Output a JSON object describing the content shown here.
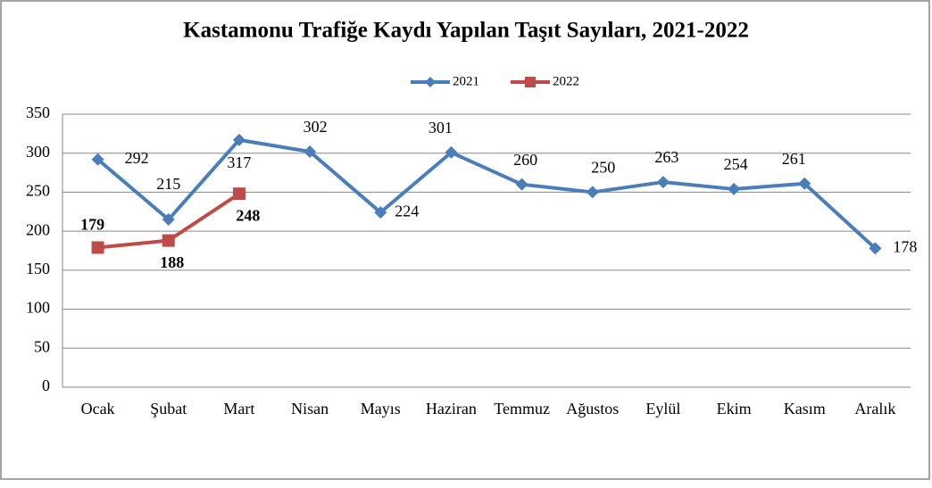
{
  "chart_data": {
    "type": "line",
    "title": "Kastamonu Trafiğe Kaydı Yapılan Taşıt Sayıları, 2021-2022",
    "categories": [
      "Ocak",
      "Şubat",
      "Mart",
      "Nisan",
      "Mayıs",
      "Haziran",
      "Temmuz",
      "Ağustos",
      "Eylül",
      "Ekim",
      "Kasım",
      "Aralık"
    ],
    "series": [
      {
        "name": "2021",
        "color": "#4a7ebb",
        "values": [
          292,
          215,
          317,
          302,
          224,
          301,
          260,
          250,
          263,
          254,
          261,
          178
        ]
      },
      {
        "name": "2022",
        "color": "#be4b48",
        "values": [
          179,
          188,
          248,
          null,
          null,
          null,
          null,
          null,
          null,
          null,
          null,
          null
        ]
      }
    ],
    "ylim": [
      0,
      350
    ],
    "yticks": [
      0,
      50,
      100,
      150,
      200,
      250,
      300,
      350
    ],
    "grid": true,
    "legend": "top"
  }
}
